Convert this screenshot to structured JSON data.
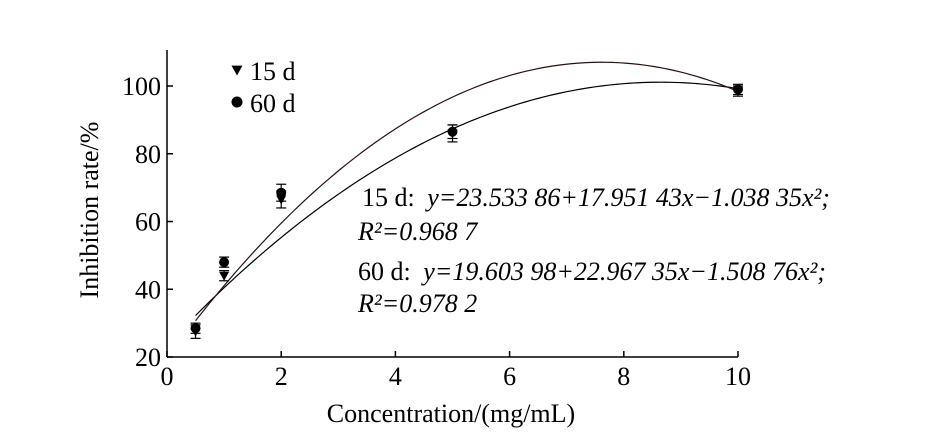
{
  "chart_data": {
    "type": "scatter",
    "xlabel": "Concentration/(mg/mL)",
    "ylabel": "Inhibition rate/%",
    "xlim": [
      0,
      10
    ],
    "ylim": [
      20,
      110
    ],
    "x_ticks": [
      0,
      2,
      4,
      6,
      8,
      10
    ],
    "y_ticks": [
      20,
      40,
      60,
      80,
      100
    ],
    "grid": false,
    "legend_position": "top-left",
    "series": [
      {
        "name": "15 d",
        "marker": "triangle-down",
        "x": [
          0.5,
          1,
          2,
          5,
          10
        ],
        "y": [
          27.5,
          44,
          66.5,
          86,
          98.5
        ],
        "err": [
          2,
          1.5,
          2.5,
          2.5,
          1.5
        ],
        "fit": {
          "a": 23.53386,
          "b": 17.95143,
          "c": -1.03835
        }
      },
      {
        "name": "60 d",
        "marker": "circle",
        "x": [
          0.5,
          1,
          2,
          5,
          10
        ],
        "y": [
          28.5,
          48,
          68.5,
          86.5,
          99
        ],
        "err": [
          1.5,
          1.5,
          2.5,
          2,
          1.5
        ],
        "fit": {
          "a": 19.60398,
          "b": 22.96735,
          "c": -1.50876
        }
      }
    ],
    "annotations": [
      {
        "label": "15 d:",
        "equation": "y=23.533 86+17.951 43x−1.038 35x²;",
        "r2": "R²=0.968 7"
      },
      {
        "label": "60 d:",
        "equation": "y=19.603 98+22.967 35x−1.508 76x²;",
        "r2": "R²=0.978 2"
      }
    ]
  }
}
